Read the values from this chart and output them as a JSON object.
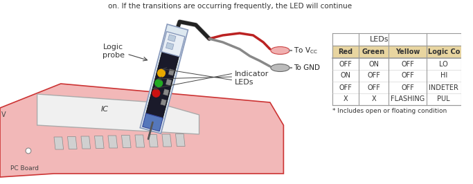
{
  "title_text": "on. If the transitions are occurring frequently, the LED will continue",
  "table_header": "LEDs",
  "col_headers": [
    "Red",
    "Green",
    "Yellow",
    "Logic Co…"
  ],
  "rows": [
    [
      "OFF",
      "ON",
      "OFF",
      "LO…"
    ],
    [
      "ON",
      "OFF",
      "OFF",
      "HI…"
    ],
    [
      "OFF",
      "OFF",
      "OFF",
      "INDETER…"
    ],
    [
      "X",
      "X",
      "FLASHING",
      "PUL…"
    ]
  ],
  "footnote": "* Includes open or floating condition",
  "col_header_bg": "#e8d5a0",
  "border_color": "#999999",
  "text_color": "#333333",
  "bg_color": "#ffffff",
  "led_yellow": "#e8a800",
  "led_green": "#22aa22",
  "led_red": "#cc1111",
  "pcb_color": "#f2b8b8",
  "pcb_edge": "#cc3333",
  "ic_color": "#f8f8f8",
  "probe_dark": "#1a1a2a",
  "probe_light": "#dde8f0",
  "probe_blue": "#5577bb",
  "label_color": "#333333",
  "wire_black": "#333333",
  "wire_red": "#bb2222",
  "wire_gray": "#888888",
  "connector_red_fill": "#f0b0b0",
  "connector_gray_fill": "#bbbbbb"
}
